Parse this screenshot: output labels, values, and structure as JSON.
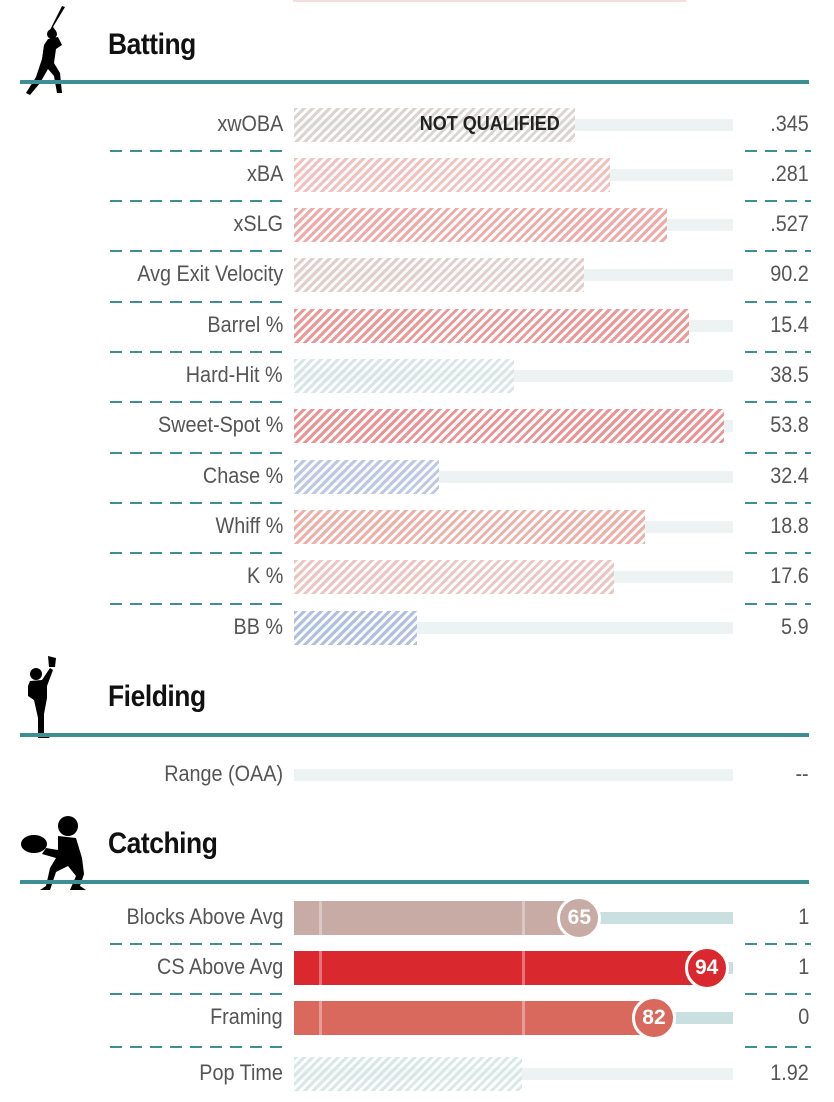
{
  "colors": {
    "accent": "#3d8f94",
    "track": "#edf3f2",
    "track_catching": "#c9dfe0"
  },
  "sections": [
    {
      "title": "Batting",
      "icon": "batter-silhouette-icon",
      "rows": [
        {
          "label": "xwOBA",
          "value": ".345",
          "percentile": 64,
          "color": "#d6d0cc",
          "hatched": true,
          "note": "NOT QUALIFIED"
        },
        {
          "label": "xBA",
          "value": ".281",
          "percentile": 72,
          "color": "#efbcb8",
          "hatched": true
        },
        {
          "label": "xSLG",
          "value": ".527",
          "percentile": 85,
          "color": "#eba3a0",
          "hatched": true
        },
        {
          "label": "Avg Exit Velocity",
          "value": "90.2",
          "percentile": 66,
          "color": "#dfcac5",
          "hatched": true
        },
        {
          "label": "Barrel %",
          "value": "15.4",
          "percentile": 90,
          "color": "#e78f8c",
          "hatched": true
        },
        {
          "label": "Hard-Hit %",
          "value": "38.5",
          "percentile": 50,
          "color": "#d3e3e2",
          "hatched": true
        },
        {
          "label": "Sweet-Spot %",
          "value": "53.8",
          "percentile": 98,
          "color": "#e8888a",
          "hatched": true
        },
        {
          "label": "Chase %",
          "value": "32.4",
          "percentile": 33,
          "color": "#b6c2e0",
          "hatched": true
        },
        {
          "label": "Whiff %",
          "value": "18.8",
          "percentile": 80,
          "color": "#eaaaa0",
          "hatched": true
        },
        {
          "label": "K %",
          "value": "17.6",
          "percentile": 73,
          "color": "#e9c1bb",
          "hatched": true
        },
        {
          "label": "BB %",
          "value": "5.9",
          "percentile": 28,
          "color": "#a9b9dc",
          "hatched": true
        }
      ]
    },
    {
      "title": "Fielding",
      "icon": "fielder-silhouette-icon",
      "rows": [
        {
          "label": "Range (OAA)",
          "value": "--",
          "percentile": null
        }
      ]
    },
    {
      "title": "Catching",
      "icon": "catcher-silhouette-icon",
      "rows": [
        {
          "label": "Blocks Above Avg",
          "value": "1",
          "percentile": 65,
          "color": "#c8aba5",
          "hatched": false,
          "badge": "65"
        },
        {
          "label": "CS Above Avg",
          "value": "1",
          "percentile": 94,
          "color": "#d9292e",
          "hatched": false,
          "badge": "94"
        },
        {
          "label": "Framing",
          "value": "0",
          "percentile": 82,
          "color": "#d9695c",
          "hatched": false,
          "badge": "82"
        },
        {
          "label": "Pop Time",
          "value": "1.92",
          "percentile": 52,
          "color": "#d3e6e4",
          "hatched": true
        }
      ]
    }
  ]
}
